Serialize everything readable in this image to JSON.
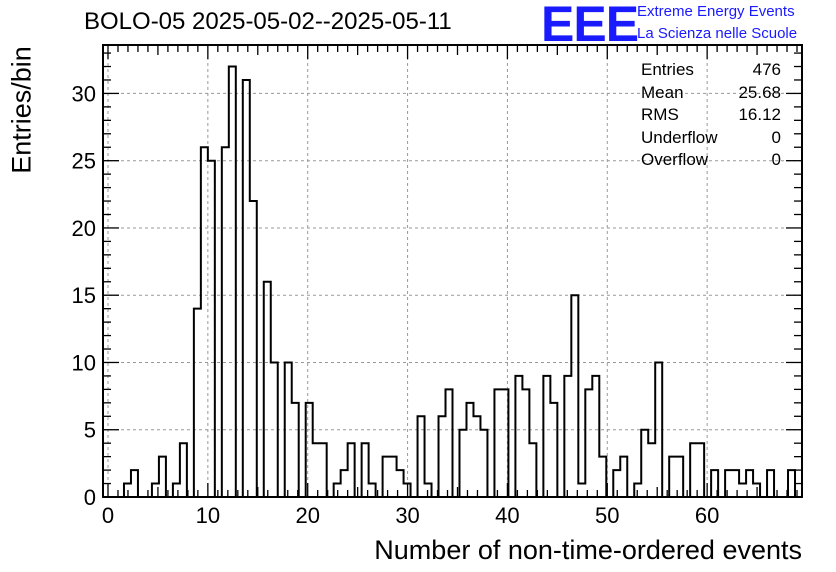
{
  "chart_data": {
    "type": "bar",
    "title": "BOLO-05 2025-05-02--2025-05-11",
    "xlabel": "Number of non-time-ordered events",
    "ylabel": "Entries/bin",
    "xlim": [
      -0.5,
      69.5
    ],
    "ylim": [
      0,
      33.6
    ],
    "bin_width": 0.7,
    "grid": true,
    "x_ticks": [
      0,
      10,
      20,
      30,
      40,
      50,
      60
    ],
    "y_ticks": [
      0,
      5,
      10,
      15,
      20,
      25,
      30
    ],
    "bin_edges_start": 1.6,
    "values": [
      1,
      2,
      0,
      0,
      1,
      3,
      0,
      1,
      4,
      0,
      14,
      26,
      25,
      0,
      26,
      32,
      0,
      31,
      22,
      0,
      16,
      10,
      0,
      10,
      7,
      0,
      7,
      4,
      4,
      0,
      1,
      2,
      4,
      0,
      4,
      1,
      0,
      3,
      3,
      2,
      1,
      0,
      6,
      1,
      0,
      6,
      8,
      0,
      5,
      7,
      6,
      5,
      0,
      8,
      8,
      0,
      9,
      8,
      4,
      0,
      9,
      7,
      0,
      9,
      15,
      1,
      8,
      9,
      3,
      0,
      2,
      3,
      0,
      1,
      5,
      4,
      10,
      0,
      3,
      3,
      0,
      4,
      4,
      0,
      2,
      0,
      2,
      2,
      1,
      2,
      1,
      0,
      2,
      0,
      0,
      2,
      0
    ],
    "stats": {
      "Entries": "476",
      "Mean": "25.68",
      "RMS": "16.12",
      "Underflow": "0",
      "Overflow": "0"
    },
    "logo": {
      "letters": "EEE",
      "line1": "Extreme Energy Events",
      "line2": "La Scienza nelle Scuole"
    },
    "colors": {
      "line": "#000000",
      "grid": "#999999",
      "logo": "#1a1aff"
    }
  }
}
